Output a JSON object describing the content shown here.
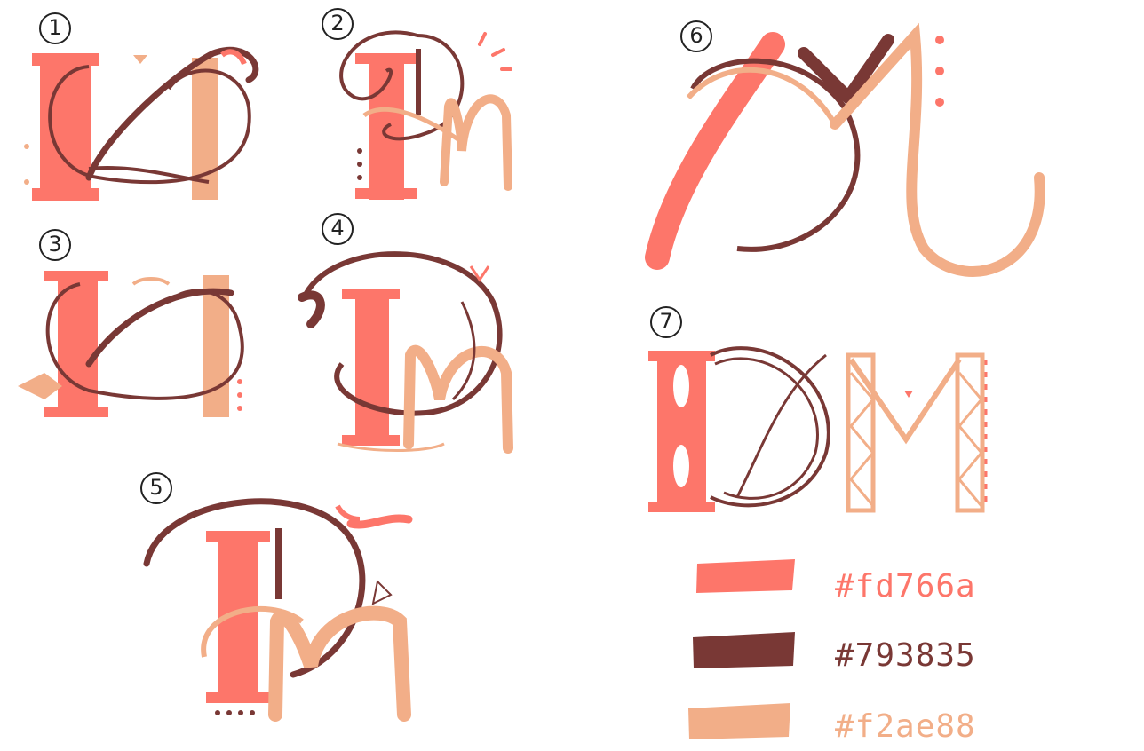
{
  "sketch_numbers": [
    "1",
    "2",
    "3",
    "4",
    "5",
    "6",
    "7"
  ],
  "palette": [
    {
      "hex": "#fd766a",
      "color": "#fd766a"
    },
    {
      "hex": "#793835",
      "color": "#793835"
    },
    {
      "hex": "#f2ae88",
      "color": "#f2ae88"
    }
  ]
}
